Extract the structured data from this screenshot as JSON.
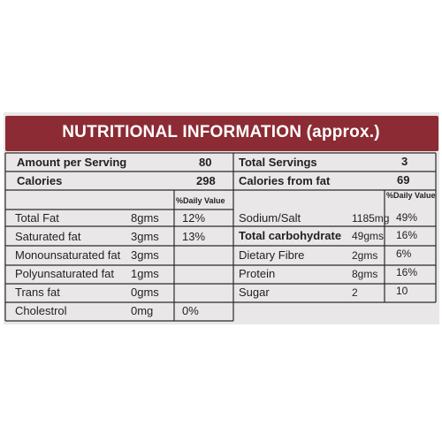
{
  "title": "NUTRITIONAL INFORMATION (approx.)",
  "summary": {
    "amount_per_serving_label": "Amount per Serving",
    "amount_per_serving_value": "80",
    "total_servings_label": "Total Servings",
    "total_servings_value": "3",
    "calories_label": "Calories",
    "calories_value": "298",
    "calories_from_fat_label": "Calories from fat",
    "calories_from_fat_value": "69"
  },
  "daily_value_header": "%Daily Value",
  "left_rows": [
    {
      "name": "Total Fat",
      "amount": "8gms",
      "dv": "12%"
    },
    {
      "name": "Saturated fat",
      "amount": "3gms",
      "dv": "13%"
    },
    {
      "name": "Monounsaturated fat",
      "amount": "3gms",
      "dv": ""
    },
    {
      "name": "Polyunsaturated fat",
      "amount": "1gms",
      "dv": ""
    },
    {
      "name": "Trans fat",
      "amount": "0gms",
      "dv": ""
    },
    {
      "name": "Cholestrol",
      "amount": "0mg",
      "dv": "0%"
    }
  ],
  "right_rows": [
    {
      "name": "Sodium/Salt",
      "amount": "1185mg",
      "dv": "49%"
    },
    {
      "name": "Total carbohydrate",
      "amount": "49gms",
      "dv": "16%"
    },
    {
      "name": "Dietary Fibre",
      "amount": "2gms",
      "dv": "6%"
    },
    {
      "name": "Protein",
      "amount": "8gms",
      "dv": "16%"
    },
    {
      "name": "Sugar",
      "amount": "2",
      "dv": "10"
    }
  ],
  "colors": {
    "banner": "#8c2b34",
    "panel": "#e9e7e8",
    "text": "#231f20"
  }
}
